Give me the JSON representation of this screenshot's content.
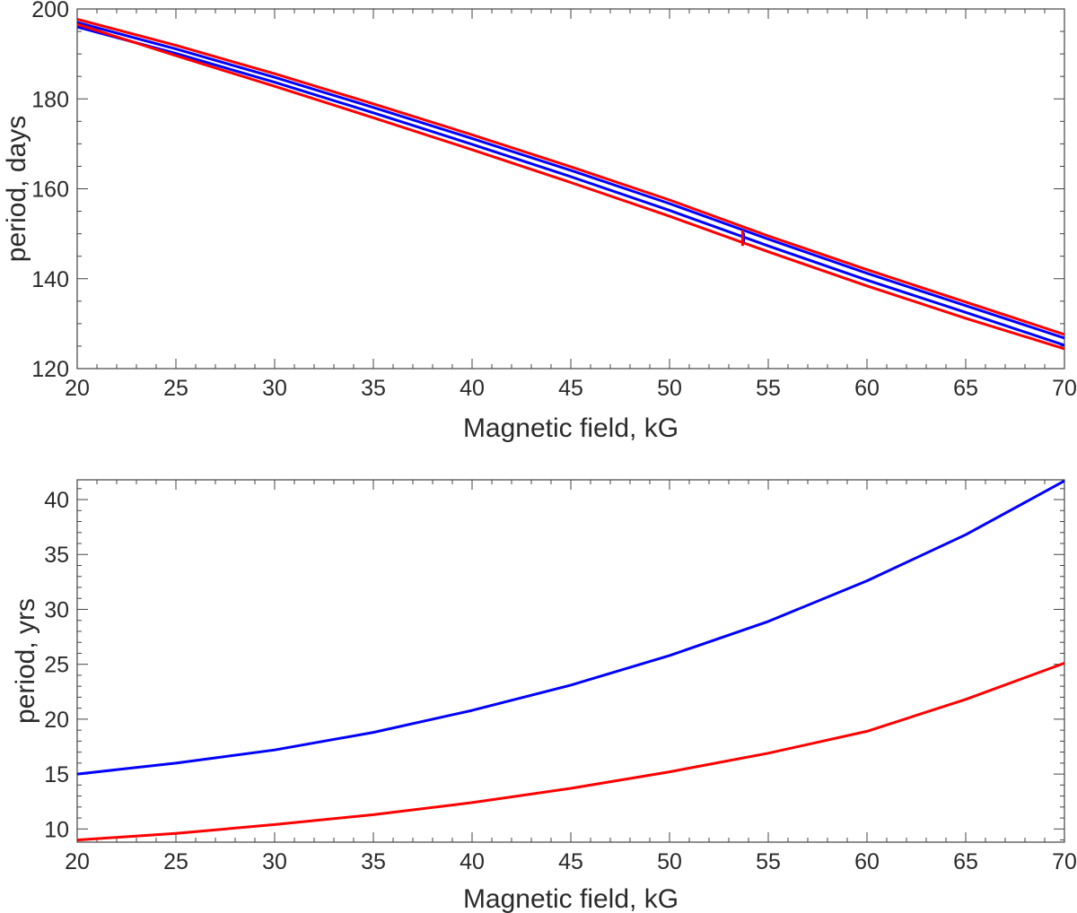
{
  "chart_data": [
    {
      "type": "line",
      "title": "",
      "xlabel": "Magnetic field, kG",
      "ylabel": "period, days",
      "xlim": [
        20,
        70
      ],
      "ylim": [
        120,
        200
      ],
      "xticks": [
        20,
        25,
        30,
        35,
        40,
        45,
        50,
        55,
        60,
        65,
        70
      ],
      "yticks": [
        120,
        140,
        160,
        180,
        200
      ],
      "xtick_labels": [
        "20",
        "25",
        "30",
        "35",
        "40",
        "45",
        "50",
        "55",
        "60",
        "65",
        "70"
      ],
      "ytick_labels": [
        "120",
        "140",
        "160",
        "180",
        "200"
      ],
      "series": [
        {
          "name": "red upper",
          "color": "#ff0000",
          "x": [
            20,
            25,
            30,
            35,
            40,
            45,
            50,
            55,
            60,
            65,
            70
          ],
          "y": [
            197.7,
            191.9,
            185.6,
            178.9,
            172.0,
            164.9,
            157.5,
            149.5,
            142.0,
            134.8,
            127.6
          ]
        },
        {
          "name": "blue upper",
          "color": "#0000ff",
          "x": [
            20,
            25,
            30,
            35,
            40,
            45,
            50,
            55,
            60,
            65,
            70
          ],
          "y": [
            197.0,
            191.1,
            184.8,
            178.1,
            171.2,
            164.1,
            156.7,
            148.8,
            141.2,
            134.0,
            126.8
          ]
        },
        {
          "name": "blue lower",
          "color": "#0000ff",
          "x": [
            20,
            25,
            30,
            35,
            40,
            45,
            50,
            55,
            60,
            65,
            70
          ],
          "y": [
            196.0,
            190.1,
            183.7,
            176.9,
            169.9,
            162.7,
            155.2,
            147.3,
            139.7,
            132.5,
            125.2
          ]
        },
        {
          "name": "red lower",
          "color": "#ff0000",
          "x": [
            20,
            25,
            30,
            35,
            40,
            45,
            50,
            55,
            60,
            65,
            70
          ],
          "y": [
            196.6,
            189.6,
            182.8,
            175.8,
            168.7,
            161.4,
            153.9,
            146.0,
            138.4,
            131.2,
            124.4
          ]
        },
        {
          "name": "blue step",
          "color": "#0000ff",
          "x": [
            53.75,
            53.75
          ],
          "y": [
            150.2,
            148.0
          ]
        },
        {
          "name": "red step",
          "color": "#ff0000",
          "x": [
            53.7,
            53.7
          ],
          "y": [
            150.8,
            147.3
          ]
        }
      ]
    },
    {
      "type": "line",
      "title": "",
      "xlabel": "Magnetic field, kG",
      "ylabel": "period, yrs",
      "xlim": [
        20,
        70
      ],
      "ylim": [
        8.8,
        41.8
      ],
      "xticks": [
        20,
        25,
        30,
        35,
        40,
        45,
        50,
        55,
        60,
        65,
        70
      ],
      "yticks": [
        10,
        15,
        20,
        25,
        30,
        35,
        40
      ],
      "xtick_labels": [
        "20",
        "25",
        "30",
        "35",
        "40",
        "45",
        "50",
        "55",
        "60",
        "65",
        "70"
      ],
      "ytick_labels": [
        "10",
        "15",
        "20",
        "25",
        "30",
        "35",
        "40"
      ],
      "series": [
        {
          "name": "blue",
          "color": "#0000ff",
          "x": [
            20,
            25,
            30,
            35,
            40,
            45,
            50,
            55,
            60,
            65,
            70
          ],
          "y": [
            15.0,
            16.0,
            17.2,
            18.8,
            20.8,
            23.1,
            25.8,
            28.9,
            32.6,
            36.8,
            41.7
          ]
        },
        {
          "name": "red",
          "color": "#ff0000",
          "x": [
            20,
            25,
            30,
            35,
            40,
            45,
            50,
            55,
            60,
            65,
            70
          ],
          "y": [
            9.0,
            9.6,
            10.4,
            11.3,
            12.4,
            13.7,
            15.2,
            16.9,
            18.9,
            21.8,
            25.1
          ]
        }
      ]
    }
  ]
}
